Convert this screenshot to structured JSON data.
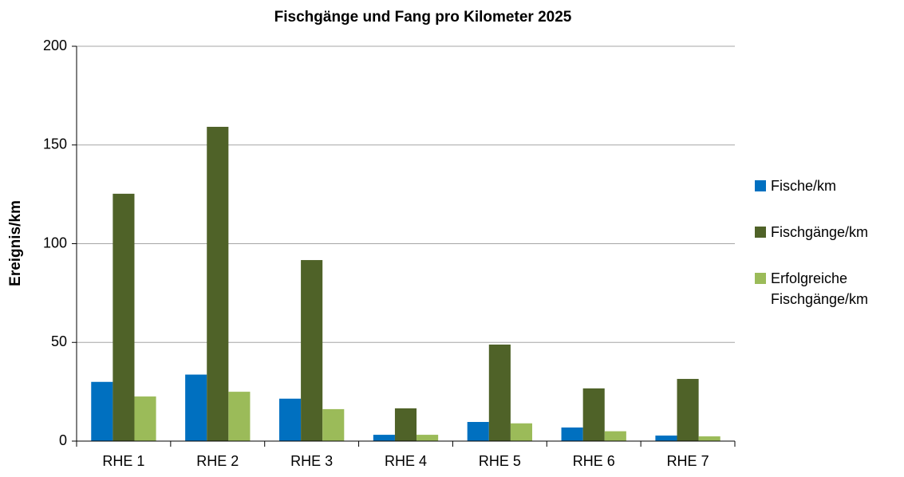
{
  "chart_data": {
    "type": "bar",
    "title": "Fischgänge und Fang pro Kilometer 2025",
    "y_label": "Ereignis/km",
    "categories": [
      "RHE 1",
      "RHE 2",
      "RHE 3",
      "RHE 4",
      "RHE 5",
      "RHE 6",
      "RHE 7"
    ],
    "series": [
      {
        "name": "Fische/km",
        "color": "#0070c0",
        "values": [
          30,
          33.7,
          21.5,
          3.2,
          9.7,
          6.9,
          2.8
        ]
      },
      {
        "name": "Fischgänge/km",
        "color": "#4f6228",
        "values": [
          125.3,
          159.2,
          91.7,
          16.6,
          48.9,
          26.7,
          31.5
        ]
      },
      {
        "name": "Erfolgreiche Fischgänge/km",
        "color": "#9bbb59",
        "values": [
          22.6,
          25,
          16.2,
          3.2,
          9,
          5,
          2.4
        ]
      }
    ],
    "ylim": [
      0,
      200
    ],
    "yticks": [
      0,
      50,
      100,
      150,
      200
    ],
    "grid": true,
    "legend": "right"
  }
}
